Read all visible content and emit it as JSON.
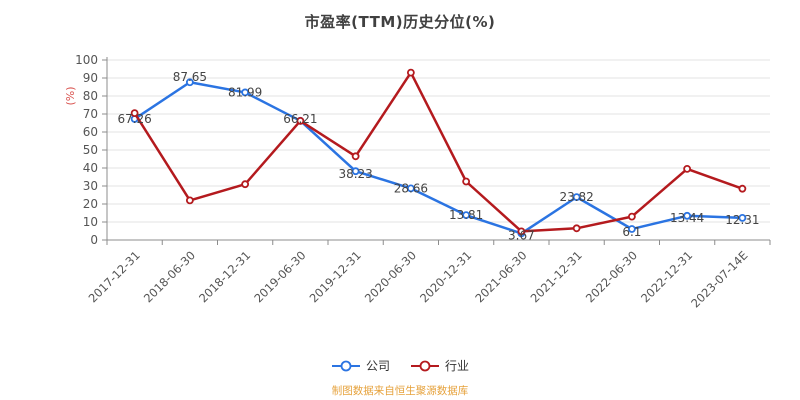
{
  "title": "市盈率(TTM)历史分位(%)",
  "chart_data": {
    "type": "line",
    "title": "市盈率(TTM)历史分位(%)",
    "xlabel": "",
    "ylabel": "(%)",
    "ylim": [
      0,
      100
    ],
    "y_ticks": [
      0,
      10,
      20,
      30,
      40,
      50,
      60,
      70,
      80,
      90,
      100
    ],
    "grid": true,
    "legend_position": "bottom",
    "categories": [
      "2017-12-31",
      "2018-06-30",
      "2018-12-31",
      "2019-06-30",
      "2019-12-31",
      "2020-06-30",
      "2020-12-31",
      "2021-06-30",
      "2021-12-31",
      "2022-06-30",
      "2022-12-31",
      "2023-07-14E"
    ],
    "series": [
      {
        "id": "company",
        "name": "公司",
        "color": "#2b74e2",
        "show_labels": true,
        "values": [
          67.26,
          87.65,
          81.99,
          66.21,
          38.23,
          28.66,
          13.81,
          3.67,
          23.82,
          6.1,
          13.44,
          12.31
        ]
      },
      {
        "id": "industry",
        "name": "行业",
        "color": "#b41a1e",
        "show_labels": false,
        "values": [
          70.5,
          22,
          31,
          66.2,
          46.5,
          93,
          32.5,
          4.8,
          6.5,
          13,
          39.5,
          28.5
        ]
      }
    ]
  },
  "legend": {
    "items": [
      {
        "id": "company",
        "label": "公司",
        "color": "#2b74e2"
      },
      {
        "id": "industry",
        "label": "行业",
        "color": "#b41a1e"
      }
    ]
  },
  "footer": {
    "text": "制图数据来自恒生聚源数据库",
    "color": "#e6a23c"
  },
  "colors": {
    "axis_line": "#8c8c8c",
    "grid_line": "#e3e3e3",
    "tick_label": "#555555",
    "data_label": "#444444",
    "axis_name": "#d9534f",
    "title": "#404040"
  }
}
